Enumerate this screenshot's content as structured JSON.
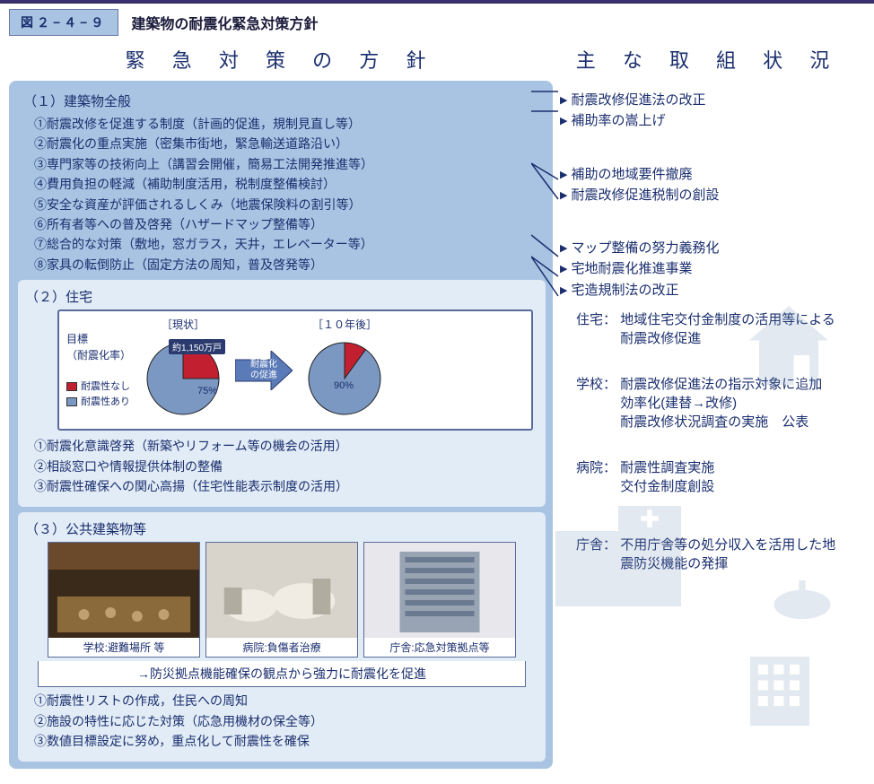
{
  "header": {
    "figure_label": "図２−４−９",
    "title": "建築物の耐震化緊急対策方針",
    "bar_color": "#3a2e6e",
    "label_bg": "#a8c4e2",
    "text_color": "#1a2e6e"
  },
  "columns": {
    "left_title": "緊 急 対 策 の 方 針",
    "right_title": "主 な 取 組 状 況"
  },
  "section1": {
    "heading": "（１）建築物全般",
    "items": [
      "①耐震改修を促進する制度（計画的促進，規制見直し等）",
      "②耐震化の重点実施（密集市街地，緊急輸送道路沿い）",
      "③専門家等の技術向上（講習会開催，簡易工法開発推進等）",
      "④費用負担の軽減（補助制度活用，税制度整備検討）",
      "⑤安全な資産が評価されるしくみ（地震保険料の割引等）",
      "⑥所有者等への普及啓発（ハザードマップ整備等）",
      "⑦総合的な対策（敷地，窓ガラス，天井，エレベーター等）",
      "⑧家具の転倒防止（固定方法の周知，普及啓発等）"
    ]
  },
  "section2": {
    "heading": "（２）住宅",
    "chart": {
      "target_label": "目標",
      "rate_label": "（耐震化率）",
      "current_label": "［現状］",
      "future_label": "［１０年後］",
      "legend_no": "耐震性なし",
      "legend_yes": "耐震性あり",
      "arrow_label": "耐震化\nの促進",
      "callout_units": "約1,150万戸",
      "current_pct": 75,
      "future_pct": 90,
      "current_pct_label": "75%",
      "future_pct_label": "90%",
      "colors": {
        "yes": "#7a98c2",
        "no": "#c22030",
        "border": "#222",
        "arrow_fill": "#5a7ab8",
        "arrow_text": "#ffffff",
        "callout_bg": "#2a3a6e",
        "callout_text": "#ffffff"
      }
    },
    "items": [
      "①耐震化意識啓発（新築やリフォーム等の機会の活用）",
      "②相談窓口や情報提供体制の整備",
      "③耐震性確保への関心高揚（住宅性能表示制度の活用）"
    ]
  },
  "section3": {
    "heading": "（３）公共建築物等",
    "photos": [
      {
        "caption": "学校:避難場所 等"
      },
      {
        "caption": "病院:負傷者治療"
      },
      {
        "caption": "庁舎:応急対策拠点等"
      }
    ],
    "conclusion": "→防災拠点機能確保の観点から強力に耐震化を促進",
    "items": [
      "①耐震性リストの作成，住民への周知",
      "②施設の特性に応じた対策（応急用機材の保全等）",
      "③数値目標設定に努め，重点化して耐震性を確保"
    ]
  },
  "right": {
    "bullets1": [
      "耐震改修促進法の改正",
      "補助率の嵩上げ"
    ],
    "bullets2": [
      "補助の地域要件撤廃",
      "耐震改修促進税制の創設"
    ],
    "bullets3": [
      "マップ整備の努力義務化",
      "宅地耐震化推進事業",
      "宅造規制法の改正"
    ],
    "jutaku_label": "住宅：",
    "jutaku_desc": "地域住宅交付金制度の活用等による耐震改修促進",
    "gakko_label": "学校：",
    "gakko_desc": "耐震改修促進法の指示対象に追加\n効率化(建替→改修)\n耐震改修状況調査の実施　公表",
    "byoin_label": "病院：",
    "byoin_desc": "耐震性調査実施\n交付金制度創設",
    "chosha_label": "庁舎：",
    "chosha_desc": "不用庁舎等の処分収入を活用した地震防災機能の発揮"
  },
  "styling": {
    "panel_bg": "#a8c4e2",
    "subpanel_bg": "#e2ecf6",
    "text_color": "#1a2e6e",
    "border_color": "#5a6a9a",
    "icon_color": "#6a8ab0",
    "icon_opacity": 0.18
  }
}
